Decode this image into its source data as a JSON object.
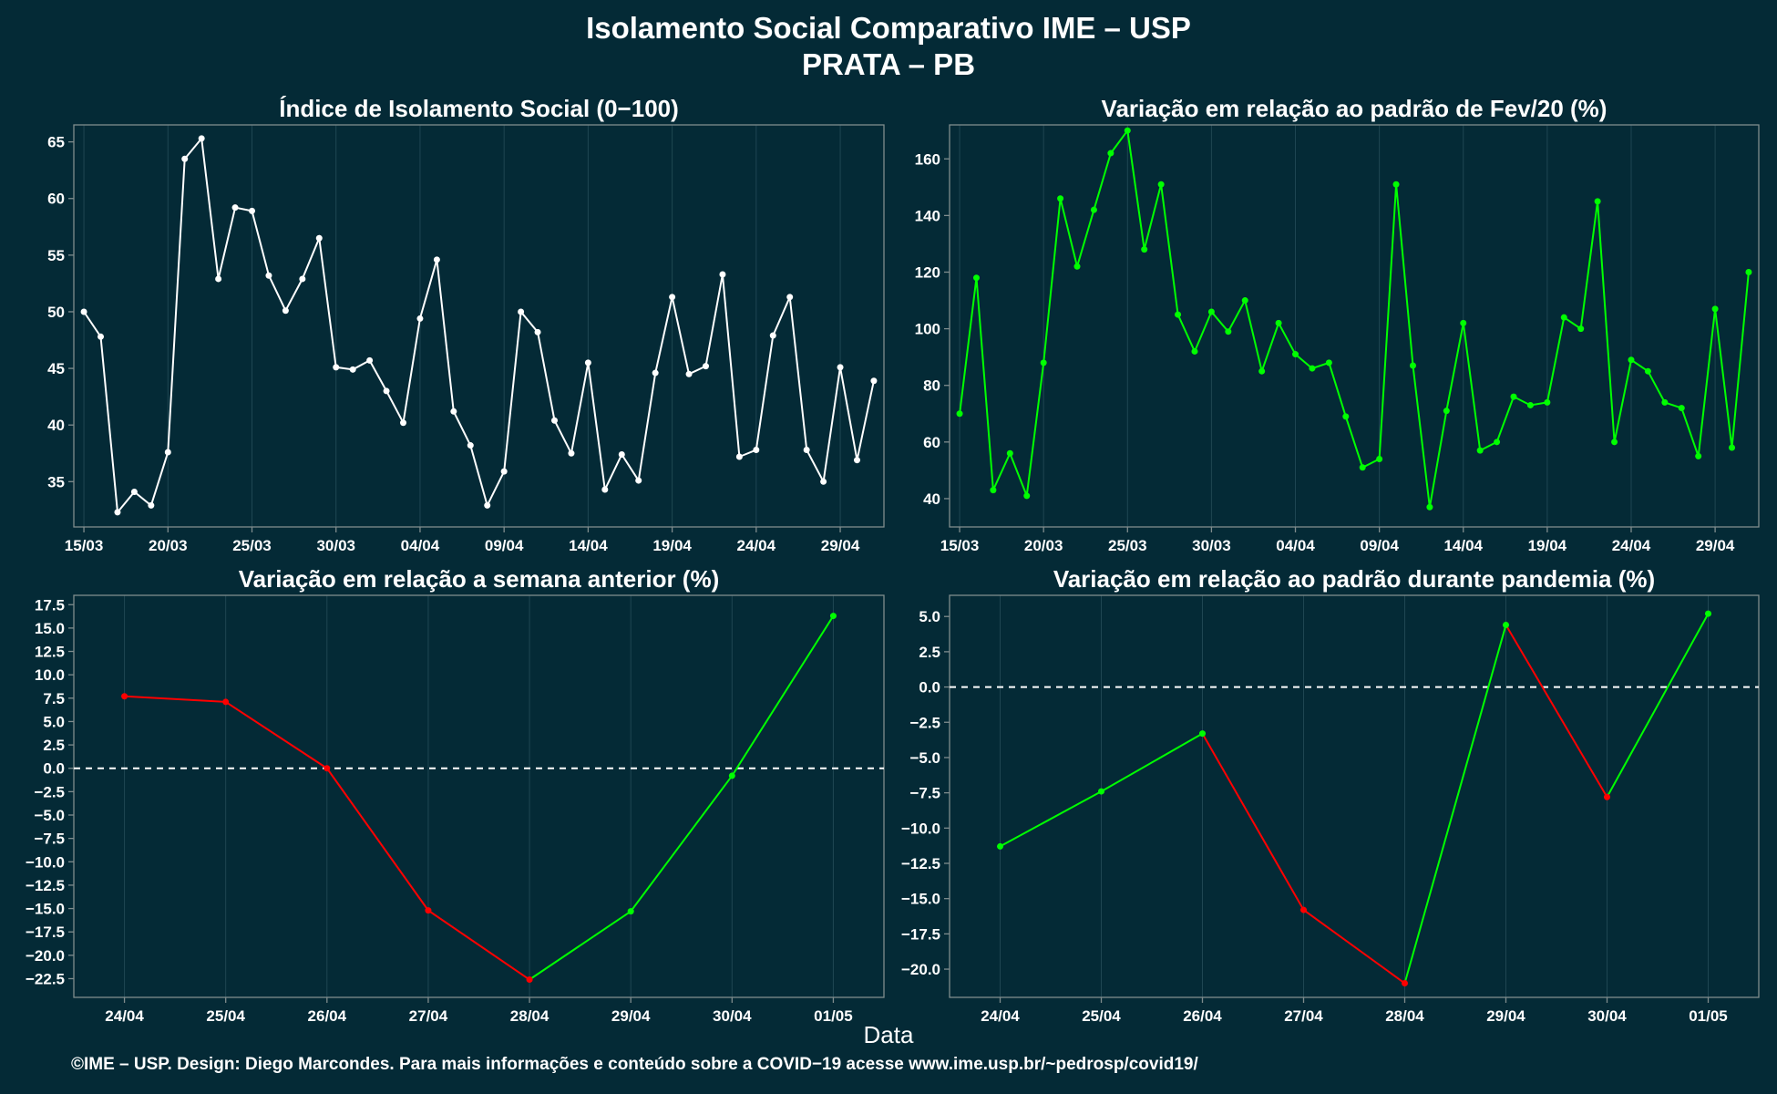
{
  "header": {
    "title": "Isolamento Social Comparativo IME – USP",
    "subtitle": "PRATA – PB"
  },
  "xlabel": "Data",
  "footer": "©IME – USP. Design: Diego Marcondes. Para mais informações e conteúdo sobre a COVID−19 acesse www.ime.usp.br/~pedrosp/covid19/",
  "colors": {
    "background": "#042a36",
    "plot_border": "#7f8c8d",
    "grid": "#1f4652",
    "white_series": "#ffffff",
    "positive": "#00ff00",
    "negative": "#ff0000",
    "refline": "#ffffff"
  },
  "chart_data": [
    {
      "id": "isolamento",
      "type": "line",
      "title": "Índice de Isolamento Social (0−100)",
      "series_color": "white",
      "ylim": [
        31,
        66.5
      ],
      "xlim": [
        -0.6,
        47.6
      ],
      "yticks": [
        35,
        40,
        45,
        50,
        55,
        60,
        65
      ],
      "ytick_labels": [
        "35",
        "40",
        "45",
        "50",
        "55",
        "60",
        "65"
      ],
      "xticks": [
        0,
        5,
        10,
        15,
        20,
        25,
        30,
        35,
        40,
        45
      ],
      "xtick_labels": [
        "15/03",
        "20/03",
        "25/03",
        "30/03",
        "04/04",
        "09/04",
        "14/04",
        "19/04",
        "24/04",
        "29/04"
      ],
      "x": [
        0,
        1,
        2,
        3,
        4,
        5,
        6,
        7,
        8,
        9,
        10,
        11,
        12,
        13,
        14,
        15,
        16,
        17,
        18,
        19,
        20,
        21,
        22,
        23,
        24,
        25,
        26,
        27,
        28,
        29,
        30,
        31,
        32,
        33,
        34,
        35,
        36,
        37,
        38,
        39,
        40,
        41,
        42,
        43,
        44,
        45,
        46,
        47
      ],
      "values": [
        50.0,
        47.8,
        32.3,
        34.1,
        32.9,
        37.6,
        63.5,
        65.3,
        52.9,
        59.2,
        58.9,
        53.2,
        50.1,
        52.9,
        56.5,
        45.1,
        44.9,
        45.7,
        43.0,
        40.2,
        49.4,
        54.6,
        41.2,
        38.2,
        32.9,
        35.9,
        50.0,
        48.2,
        40.4,
        37.5,
        45.5,
        34.3,
        37.4,
        35.1,
        44.6,
        51.3,
        44.5,
        45.2,
        53.3,
        37.2,
        37.8,
        47.9,
        51.3,
        37.8,
        35.0,
        45.1,
        36.9,
        43.9
      ]
    },
    {
      "id": "fev20",
      "type": "line",
      "title": "Variação em relação ao padrão de Fev/20 (%)",
      "series_color": "green",
      "ylim": [
        30,
        172
      ],
      "xlim": [
        -0.6,
        47.6
      ],
      "yticks": [
        40,
        60,
        80,
        100,
        120,
        140,
        160
      ],
      "ytick_labels": [
        "40",
        "60",
        "80",
        "100",
        "120",
        "140",
        "160"
      ],
      "xticks": [
        0,
        5,
        10,
        15,
        20,
        25,
        30,
        35,
        40,
        45
      ],
      "xtick_labels": [
        "15/03",
        "20/03",
        "25/03",
        "30/03",
        "04/04",
        "09/04",
        "14/04",
        "19/04",
        "24/04",
        "29/04"
      ],
      "x": [
        0,
        1,
        2,
        3,
        4,
        5,
        6,
        7,
        8,
        9,
        10,
        11,
        12,
        13,
        14,
        15,
        16,
        17,
        18,
        19,
        20,
        21,
        22,
        23,
        24,
        25,
        26,
        27,
        28,
        29,
        30,
        31,
        32,
        33,
        34,
        35,
        36,
        37,
        38,
        39,
        40,
        41,
        42,
        43,
        44,
        45,
        46,
        47
      ],
      "values": [
        70,
        118,
        43,
        56,
        41,
        88,
        146,
        122,
        142,
        162,
        170,
        128,
        151,
        105,
        92,
        106,
        99,
        110,
        85,
        102,
        91,
        86,
        88,
        69,
        51,
        54,
        151,
        87,
        37,
        71,
        102,
        57,
        60,
        76,
        73,
        74,
        104,
        100,
        145,
        60,
        89,
        85,
        74,
        72,
        55,
        107,
        58,
        120
      ]
    },
    {
      "id": "semana",
      "type": "line",
      "title": "Variação em relação a semana anterior (%)",
      "series_color": "sign",
      "ylim": [
        -24.5,
        18.5
      ],
      "xlim": [
        -0.5,
        7.5
      ],
      "refline": 0,
      "yticks": [
        -22.5,
        -20,
        -17.5,
        -15,
        -12.5,
        -10,
        -7.5,
        -5,
        -2.5,
        0,
        2.5,
        5,
        7.5,
        10,
        12.5,
        15,
        17.5
      ],
      "ytick_labels": [
        "−22.5",
        "−20.0",
        "−17.5",
        "−15.0",
        "−12.5",
        "−10.0",
        "−7.5",
        "−5.0",
        "−2.5",
        "0.0",
        "2.5",
        "5.0",
        "7.5",
        "10.0",
        "12.5",
        "15.0",
        "17.5"
      ],
      "xticks": [
        0,
        1,
        2,
        3,
        4,
        5,
        6,
        7
      ],
      "xtick_labels": [
        "24/04",
        "25/04",
        "26/04",
        "27/04",
        "28/04",
        "29/04",
        "30/04",
        "01/05"
      ],
      "x": [
        0,
        1,
        2,
        3,
        4,
        5,
        6,
        7
      ],
      "values": [
        7.7,
        7.1,
        0.0,
        -15.2,
        -22.6,
        -15.3,
        -0.8,
        16.3
      ]
    },
    {
      "id": "pandemia",
      "type": "line",
      "title": "Variação em relação ao padrão durante pandemia (%)",
      "series_color": "sign",
      "ylim": [
        -22,
        6.5
      ],
      "xlim": [
        -0.5,
        7.5
      ],
      "refline": 0,
      "yticks": [
        -20,
        -17.5,
        -15,
        -12.5,
        -10,
        -7.5,
        -5,
        -2.5,
        0,
        2.5,
        5
      ],
      "ytick_labels": [
        "−20.0",
        "−17.5",
        "−15.0",
        "−12.5",
        "−10.0",
        "−7.5",
        "−5.0",
        "−2.5",
        "0.0",
        "2.5",
        "5.0"
      ],
      "xticks": [
        0,
        1,
        2,
        3,
        4,
        5,
        6,
        7
      ],
      "xtick_labels": [
        "24/04",
        "25/04",
        "26/04",
        "27/04",
        "28/04",
        "29/04",
        "30/04",
        "01/05"
      ],
      "x": [
        0,
        1,
        2,
        3,
        4,
        5,
        6,
        7
      ],
      "values": [
        -11.3,
        -7.4,
        -3.3,
        -15.8,
        -21.0,
        4.4,
        -7.8,
        5.2
      ]
    }
  ]
}
